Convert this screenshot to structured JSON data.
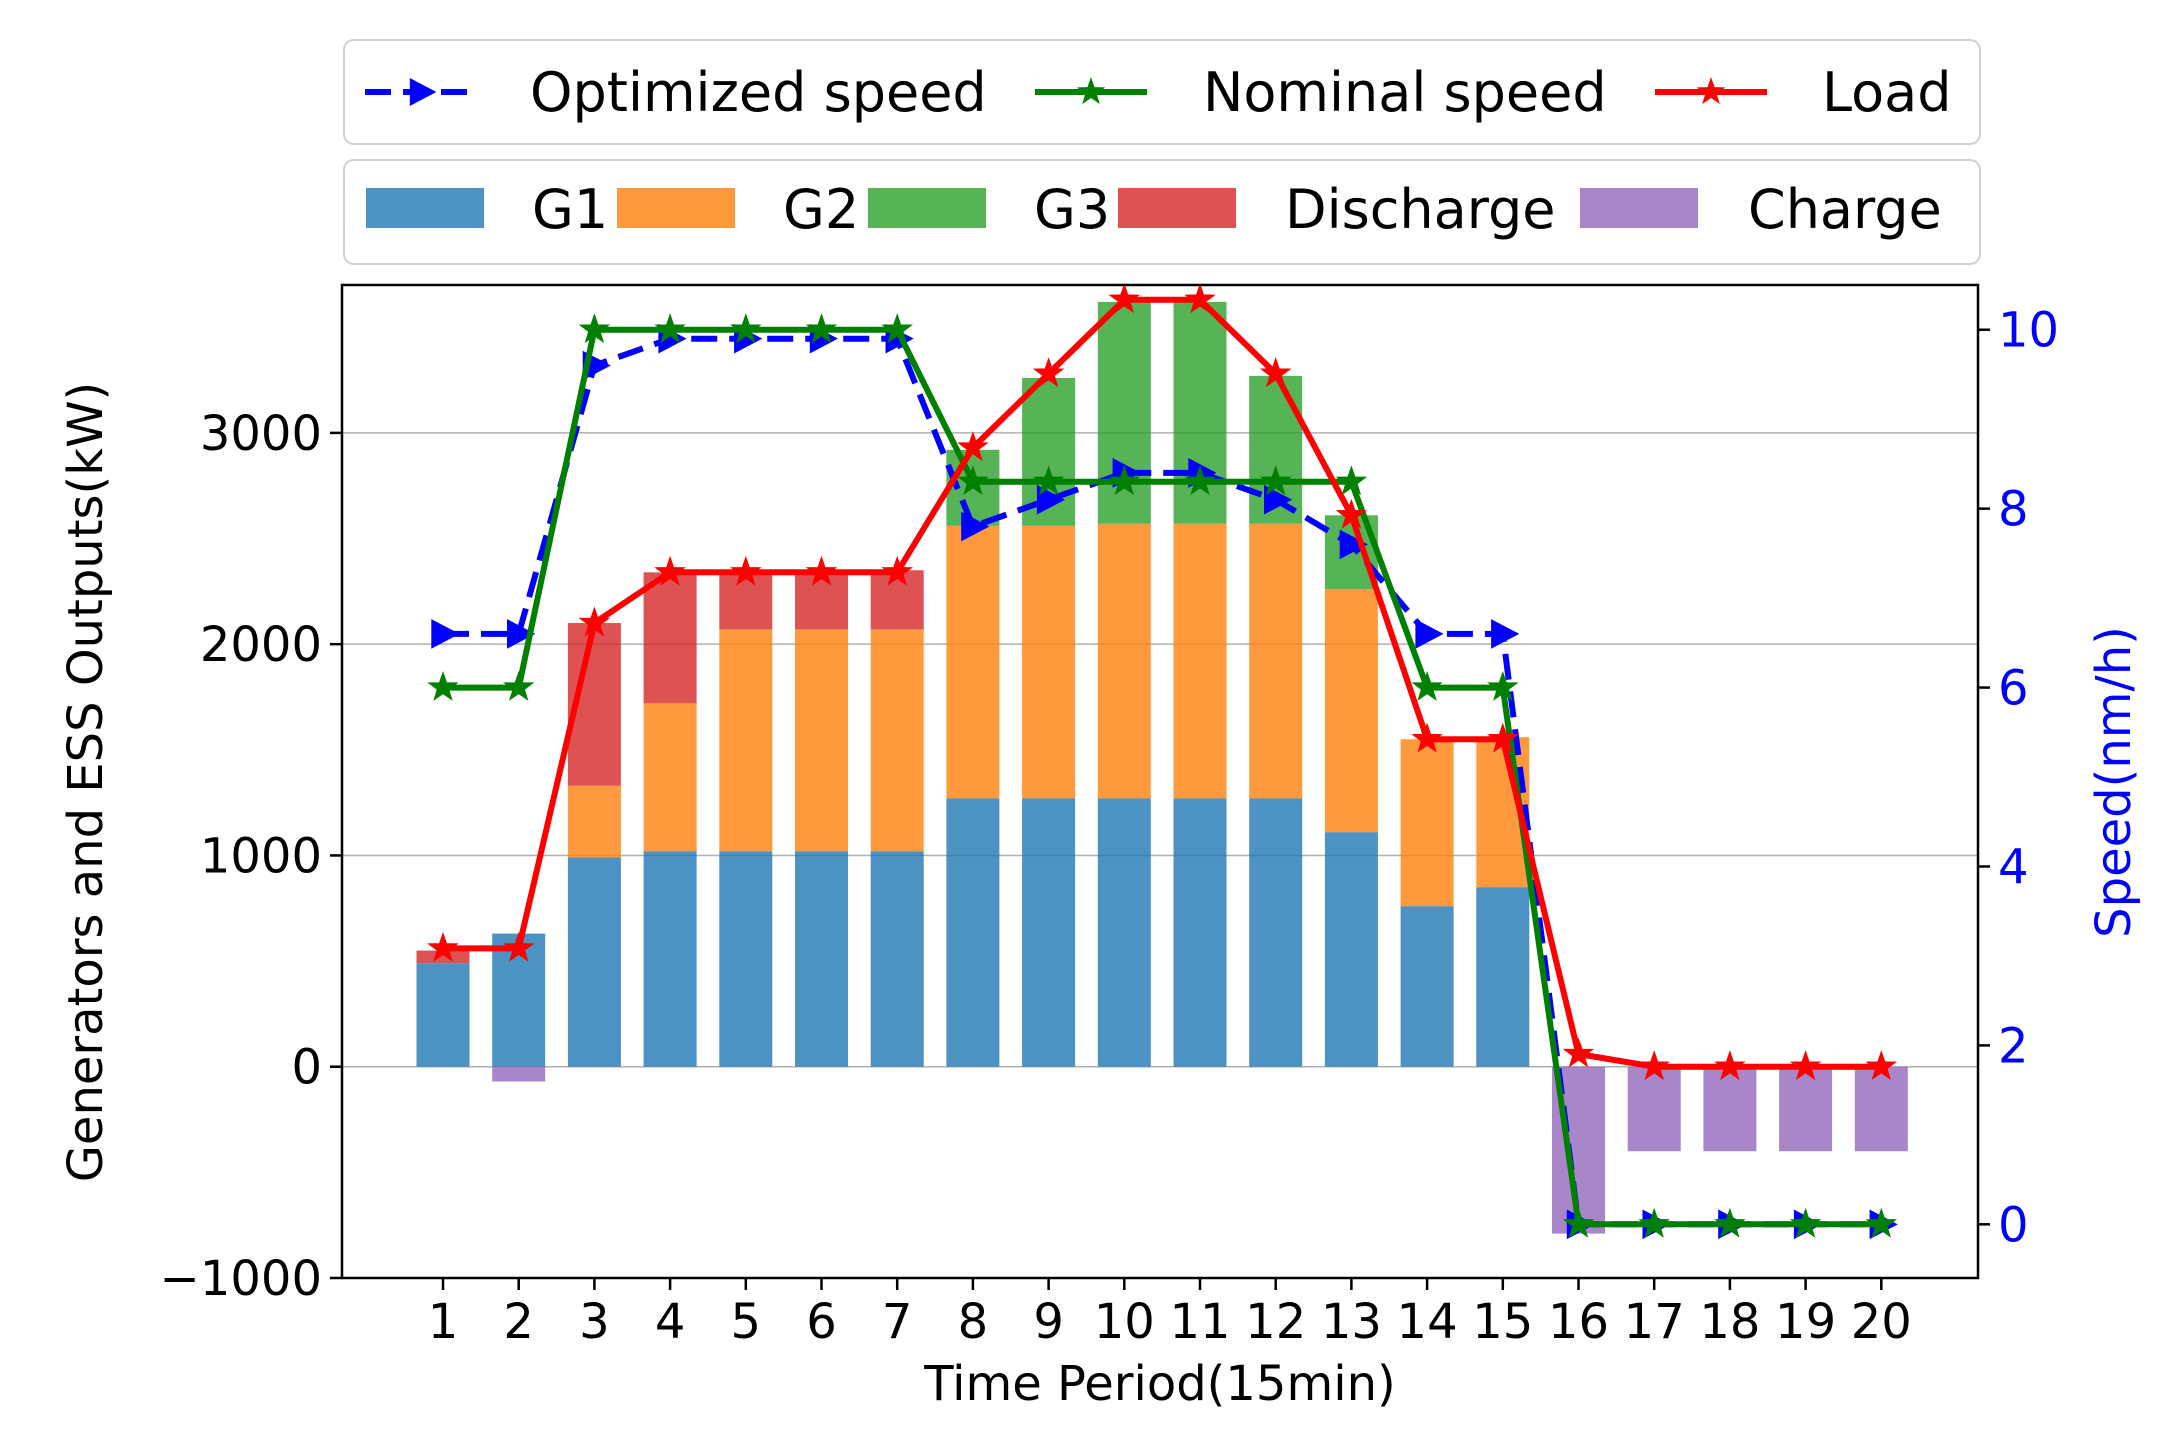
{
  "chart_data": {
    "type": "bar",
    "stacked": true,
    "categories": [
      "1",
      "2",
      "3",
      "4",
      "5",
      "6",
      "7",
      "8",
      "9",
      "10",
      "11",
      "12",
      "13",
      "14",
      "15",
      "16",
      "17",
      "18",
      "19",
      "20"
    ],
    "xlabel": "Time Period(15min)",
    "ylabel": "Generators and ESS Outputs(kW)",
    "y2label": "Speed(nm/h)",
    "ylim": [
      -1000,
      3700
    ],
    "y2lim": [
      -0.6,
      10.5
    ],
    "yticks": [
      -1000,
      0,
      1000,
      2000,
      3000
    ],
    "ytick_labels": [
      "−1000",
      "0",
      "1000",
      "2000",
      "3000"
    ],
    "y2ticks": [
      0,
      2,
      4,
      6,
      8,
      10
    ],
    "y2tick_labels": [
      "0",
      "2",
      "4",
      "6",
      "8",
      "10"
    ],
    "grid": "horizontal",
    "bar_series": [
      {
        "name": "G1",
        "color": "#1f77b4",
        "values": [
          490,
          630,
          990,
          1020,
          1020,
          1020,
          1020,
          1270,
          1270,
          1270,
          1270,
          1270,
          1110,
          760,
          850,
          0,
          0,
          0,
          0,
          0
        ]
      },
      {
        "name": "G2",
        "color": "#ff7f0e",
        "values": [
          0,
          0,
          340,
          700,
          1050,
          1050,
          1050,
          1290,
          1290,
          1300,
          1300,
          1300,
          1150,
          790,
          710,
          0,
          0,
          0,
          0,
          0
        ]
      },
      {
        "name": "G3",
        "color": "#2ca02c",
        "values": [
          0,
          0,
          0,
          0,
          0,
          0,
          0,
          360,
          700,
          1050,
          1050,
          700,
          350,
          0,
          0,
          0,
          0,
          0,
          0,
          0
        ]
      },
      {
        "name": "Discharge",
        "color": "#d62728",
        "values": [
          60,
          0,
          770,
          620,
          280,
          280,
          280,
          0,
          0,
          0,
          0,
          0,
          0,
          0,
          0,
          0,
          0,
          0,
          0,
          0
        ]
      },
      {
        "name": "Charge",
        "color": "#9467bd",
        "values": [
          0,
          -70,
          0,
          0,
          0,
          0,
          0,
          0,
          0,
          0,
          0,
          0,
          0,
          0,
          0,
          -790,
          -400,
          -400,
          -400,
          -400
        ]
      }
    ],
    "line_series": [
      {
        "name": "Optimized speed",
        "axis": "right",
        "color": "#0000ff",
        "dash": "dashed",
        "marker": "triangle-right",
        "values": [
          6.6,
          6.6,
          9.6,
          9.9,
          9.9,
          9.9,
          9.9,
          7.8,
          8.1,
          8.4,
          8.4,
          8.1,
          7.6,
          6.6,
          6.6,
          0,
          0,
          0,
          0,
          0
        ]
      },
      {
        "name": "Nominal speed",
        "axis": "right",
        "color": "#008000",
        "dash": "solid",
        "marker": "star",
        "values": [
          6.0,
          6.0,
          10.0,
          10.0,
          10.0,
          10.0,
          10.0,
          8.3,
          8.3,
          8.3,
          8.3,
          8.3,
          8.3,
          6.0,
          6.0,
          0,
          0,
          0,
          0,
          0
        ]
      },
      {
        "name": "Load",
        "axis": "left",
        "color": "#ff0000",
        "dash": "solid",
        "marker": "star",
        "values": [
          560,
          560,
          2100,
          2340,
          2340,
          2340,
          2340,
          2930,
          3280,
          3630,
          3630,
          3280,
          2610,
          1550,
          1550,
          60,
          0,
          0,
          0,
          0
        ]
      }
    ],
    "legend_lines": [
      "Optimized speed",
      "Nominal speed",
      "Load"
    ],
    "legend_bars": [
      "G1",
      "G2",
      "G3",
      "Discharge",
      "Charge"
    ],
    "legend_location": "top"
  }
}
